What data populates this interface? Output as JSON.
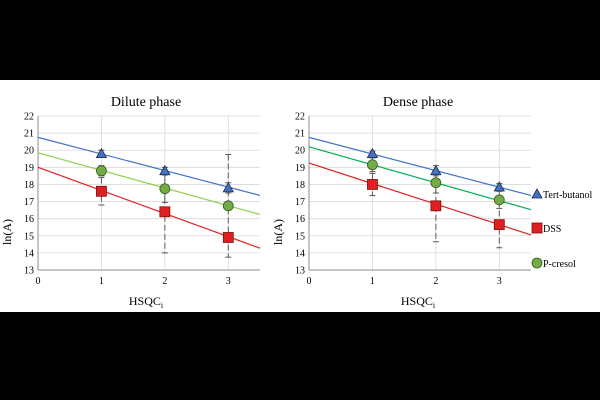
{
  "colors": {
    "tert_butanol": "#4472C4",
    "dss": "#E02020",
    "p_cresol": "#70AD47",
    "fit_p_cresol_dilute": "#92D050",
    "fit_p_cresol_dense": "#00B050",
    "grid": "#D9D9D9",
    "errorbar": "#595959"
  },
  "legend": {
    "placement": "right",
    "items": [
      {
        "label": "Tert-butanol",
        "marker": "triangle",
        "color": "#4472C4"
      },
      {
        "label": "DSS",
        "marker": "square",
        "color": "#E02020"
      },
      {
        "label": "P-cresol",
        "marker": "circle",
        "color": "#70AD47"
      }
    ]
  },
  "chart_data": [
    {
      "type": "scatter",
      "title": "Dilute phase",
      "xlabel": "HSQC",
      "xlabel_sub": "i",
      "ylabel": "ln(A)",
      "xlim": [
        0,
        3.5
      ],
      "ylim": [
        13,
        22
      ],
      "xticks": [
        0,
        1,
        2,
        3
      ],
      "yticks": [
        13,
        14,
        15,
        16,
        17,
        18,
        19,
        20,
        21,
        22
      ],
      "grid": true,
      "series": [
        {
          "name": "Tert-butanol",
          "marker": "triangle",
          "color": "#4472C4",
          "fit_color": "#4472C4",
          "x": [
            1,
            2,
            3
          ],
          "y": [
            19.8,
            18.8,
            17.8
          ],
          "err": [
            0.2,
            0.2,
            0.3
          ],
          "fit": {
            "intercept": 20.75,
            "slope": -0.97
          }
        },
        {
          "name": "DSS",
          "marker": "square",
          "color": "#E02020",
          "fit_color": "#E02020",
          "x": [
            1,
            2,
            3
          ],
          "y": [
            17.6,
            16.4,
            14.9
          ],
          "err": [
            0.8,
            2.4,
            0.0
          ],
          "fit": {
            "intercept": 19.0,
            "slope": -1.35
          }
        },
        {
          "name": "P-cresol",
          "marker": "circle",
          "color": "#70AD47",
          "fit_color": "#92D050",
          "x": [
            1,
            2,
            3
          ],
          "y": [
            18.8,
            17.75,
            16.75
          ],
          "err": [
            0.3,
            0.8,
            3.0
          ],
          "fit": {
            "intercept": 19.85,
            "slope": -1.03
          }
        }
      ]
    },
    {
      "type": "scatter",
      "title": "Dense phase",
      "xlabel": "HSQC",
      "xlabel_sub": "i",
      "ylabel": "ln(A)",
      "xlim": [
        0,
        3.5
      ],
      "ylim": [
        13,
        22
      ],
      "xticks": [
        0,
        1,
        2,
        3
      ],
      "yticks": [
        13,
        14,
        15,
        16,
        17,
        18,
        19,
        20,
        21,
        22
      ],
      "grid": true,
      "series": [
        {
          "name": "Tert-butanol",
          "marker": "triangle",
          "color": "#4472C4",
          "fit_color": "#4472C4",
          "x": [
            1,
            2,
            3
          ],
          "y": [
            19.8,
            18.8,
            17.85
          ],
          "err": [
            0.15,
            0.3,
            0.2
          ],
          "fit": {
            "intercept": 20.75,
            "slope": -0.97
          }
        },
        {
          "name": "DSS",
          "marker": "square",
          "color": "#E02020",
          "fit_color": "#E02020",
          "x": [
            1,
            2,
            3
          ],
          "y": [
            18.0,
            16.75,
            15.65
          ],
          "err": [
            0.65,
            2.1,
            1.35
          ],
          "fit": {
            "intercept": 19.25,
            "slope": -1.2
          }
        },
        {
          "name": "P-cresol",
          "marker": "circle",
          "color": "#70AD47",
          "fit_color": "#00B050",
          "x": [
            1,
            2,
            3
          ],
          "y": [
            19.15,
            18.1,
            17.1
          ],
          "err": [
            0.4,
            0.6,
            0.5
          ],
          "fit": {
            "intercept": 20.2,
            "slope": -1.05
          }
        }
      ]
    }
  ]
}
